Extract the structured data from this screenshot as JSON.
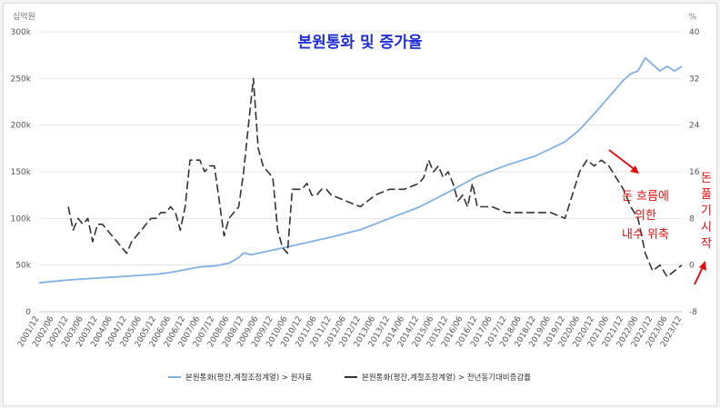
{
  "chart_data": {
    "type": "line",
    "title": "본원통화 및 증가율",
    "left_axis": {
      "unit": "십억원",
      "ticks": [
        "0",
        "50k",
        "100k",
        "150k",
        "200k",
        "250k",
        "300k"
      ],
      "ylim": [
        0,
        300000
      ]
    },
    "right_axis": {
      "unit": "%",
      "ticks": [
        "-8",
        "0",
        "8",
        "16",
        "24",
        "32",
        "40"
      ],
      "ylim": [
        -8,
        40
      ]
    },
    "x_ticks": [
      "2001/12",
      "2002/06",
      "2002/12",
      "2003/06",
      "2003/12",
      "2004/06",
      "2004/12",
      "2005/06",
      "2005/12",
      "2006/06",
      "2006/12",
      "2007/06",
      "2007/12",
      "2008/06",
      "2008/12",
      "2009/06",
      "2009/12",
      "2010/06",
      "2010/12",
      "2011/06",
      "2011/12",
      "2012/06",
      "2012/12",
      "2013/06",
      "2013/12",
      "2014/06",
      "2014/12",
      "2015/06",
      "2015/12",
      "2016/06",
      "2016/12",
      "2017/06",
      "2017/12",
      "2018/06",
      "2018/12",
      "2019/06",
      "2019/12",
      "2020/06",
      "2020/12",
      "2021/06",
      "2021/12",
      "2022/06",
      "2022/12",
      "2023/06",
      "2023/12"
    ],
    "grid": true,
    "legend_position": "bottom",
    "series": [
      {
        "name": "본원통화(평잔,계절조정계열) > 원자료",
        "axis": "left",
        "color": "#7fb0e6",
        "style": "solid",
        "points": [
          [
            "2001/12",
            31000
          ],
          [
            "2002/12",
            34000
          ],
          [
            "2003/12",
            36000
          ],
          [
            "2004/12",
            38000
          ],
          [
            "2005/12",
            40000
          ],
          [
            "2006/06",
            42000
          ],
          [
            "2006/12",
            45000
          ],
          [
            "2007/06",
            48000
          ],
          [
            "2007/12",
            49000
          ],
          [
            "2008/06",
            52000
          ],
          [
            "2008/10",
            58000
          ],
          [
            "2008/12",
            63000
          ],
          [
            "2009/03",
            61000
          ],
          [
            "2009/12",
            66000
          ],
          [
            "2010/12",
            73000
          ],
          [
            "2011/12",
            80000
          ],
          [
            "2012/12",
            88000
          ],
          [
            "2013/12",
            100000
          ],
          [
            "2014/12",
            112000
          ],
          [
            "2015/12",
            128000
          ],
          [
            "2016/12",
            145000
          ],
          [
            "2017/12",
            157000
          ],
          [
            "2018/12",
            167000
          ],
          [
            "2019/12",
            182000
          ],
          [
            "2020/06",
            195000
          ],
          [
            "2020/12",
            212000
          ],
          [
            "2021/06",
            230000
          ],
          [
            "2021/12",
            248000
          ],
          [
            "2022/03",
            255000
          ],
          [
            "2022/06",
            258000
          ],
          [
            "2022/09",
            272000
          ],
          [
            "2022/12",
            265000
          ],
          [
            "2023/03",
            258000
          ],
          [
            "2023/06",
            263000
          ],
          [
            "2023/09",
            258000
          ],
          [
            "2023/12",
            263000
          ]
        ]
      },
      {
        "name": "본원통화(평잔,계절조정계열) > 전년동기대비증감률",
        "axis": "right",
        "color": "#333333",
        "style": "dashed",
        "points": [
          [
            "2002/12",
            10
          ],
          [
            "2003/02",
            6
          ],
          [
            "2003/04",
            8
          ],
          [
            "2003/06",
            7
          ],
          [
            "2003/08",
            8
          ],
          [
            "2003/10",
            4
          ],
          [
            "2003/12",
            7
          ],
          [
            "2004/02",
            7
          ],
          [
            "2004/04",
            6
          ],
          [
            "2004/06",
            5
          ],
          [
            "2004/08",
            4
          ],
          [
            "2004/10",
            3
          ],
          [
            "2004/12",
            2
          ],
          [
            "2005/02",
            4
          ],
          [
            "2005/04",
            5
          ],
          [
            "2005/06",
            6
          ],
          [
            "2005/08",
            7
          ],
          [
            "2005/10",
            8
          ],
          [
            "2005/12",
            8
          ],
          [
            "2006/02",
            9
          ],
          [
            "2006/04",
            9
          ],
          [
            "2006/06",
            10
          ],
          [
            "2006/08",
            9
          ],
          [
            "2006/10",
            6
          ],
          [
            "2006/12",
            10
          ],
          [
            "2007/02",
            18
          ],
          [
            "2007/04",
            18
          ],
          [
            "2007/06",
            18
          ],
          [
            "2007/08",
            16
          ],
          [
            "2007/10",
            17
          ],
          [
            "2007/12",
            17
          ],
          [
            "2008/02",
            11
          ],
          [
            "2008/04",
            5
          ],
          [
            "2008/06",
            8
          ],
          [
            "2008/08",
            9
          ],
          [
            "2008/10",
            10
          ],
          [
            "2008/12",
            16
          ],
          [
            "2009/02",
            24
          ],
          [
            "2009/04",
            32
          ],
          [
            "2009/06",
            20
          ],
          [
            "2009/08",
            17
          ],
          [
            "2009/10",
            16
          ],
          [
            "2009/12",
            15
          ],
          [
            "2010/02",
            6
          ],
          [
            "2010/04",
            3
          ],
          [
            "2010/06",
            2
          ],
          [
            "2010/08",
            13
          ],
          [
            "2010/10",
            13
          ],
          [
            "2010/12",
            13
          ],
          [
            "2011/02",
            14
          ],
          [
            "2011/04",
            12
          ],
          [
            "2011/06",
            12
          ],
          [
            "2011/08",
            13
          ],
          [
            "2011/10",
            13
          ],
          [
            "2011/12",
            12
          ],
          [
            "2012/06",
            11
          ],
          [
            "2012/12",
            10
          ],
          [
            "2013/06",
            12
          ],
          [
            "2013/12",
            13
          ],
          [
            "2014/06",
            13
          ],
          [
            "2014/12",
            14
          ],
          [
            "2015/02",
            15
          ],
          [
            "2015/04",
            18
          ],
          [
            "2015/06",
            16
          ],
          [
            "2015/08",
            17
          ],
          [
            "2015/10",
            15
          ],
          [
            "2015/12",
            16
          ],
          [
            "2016/02",
            14
          ],
          [
            "2016/04",
            11
          ],
          [
            "2016/06",
            12
          ],
          [
            "2016/08",
            10
          ],
          [
            "2016/10",
            14
          ],
          [
            "2016/12",
            10
          ],
          [
            "2017/06",
            10
          ],
          [
            "2017/12",
            9
          ],
          [
            "2018/06",
            9
          ],
          [
            "2018/12",
            9
          ],
          [
            "2019/06",
            9
          ],
          [
            "2019/12",
            8
          ],
          [
            "2020/03",
            12
          ],
          [
            "2020/06",
            16
          ],
          [
            "2020/09",
            18
          ],
          [
            "2020/12",
            17
          ],
          [
            "2021/03",
            18
          ],
          [
            "2021/06",
            17
          ],
          [
            "2021/09",
            15
          ],
          [
            "2021/12",
            13
          ],
          [
            "2022/03",
            10
          ],
          [
            "2022/06",
            8
          ],
          [
            "2022/09",
            2
          ],
          [
            "2022/12",
            -1
          ],
          [
            "2023/03",
            0
          ],
          [
            "2023/06",
            -2
          ],
          [
            "2023/09",
            -1
          ],
          [
            "2023/12",
            0
          ]
        ]
      }
    ],
    "annotations": [
      {
        "text": "돈 흐름에 의한 내수 위축"
      },
      {
        "text": "돈풀기시작"
      }
    ]
  }
}
